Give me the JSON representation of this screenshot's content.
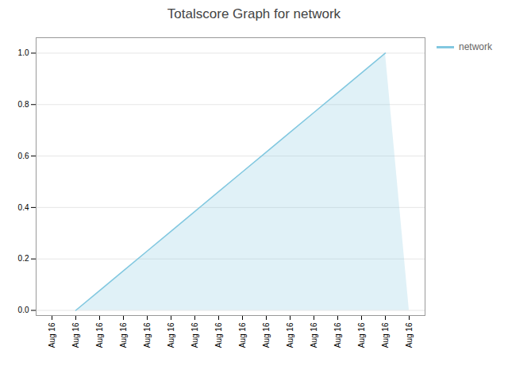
{
  "chart_data": {
    "type": "area",
    "title": "Totalscore Graph for network",
    "categories": [
      "Aug 16",
      "Aug 16",
      "Aug 16",
      "Aug 16",
      "Aug 16",
      "Aug 16",
      "Aug 16",
      "Aug 16",
      "Aug 16",
      "Aug 16",
      "Aug 16",
      "Aug 16",
      "Aug 16",
      "Aug 16",
      "Aug 16",
      "Aug 16"
    ],
    "series": [
      {
        "name": "network",
        "color": "#82C8E0",
        "values": [
          null,
          0,
          0.07692307692307693,
          0.15384615384615385,
          0.23076923076923078,
          0.3076923076923077,
          0.38461538461538464,
          0.46153846153846156,
          0.5384615384615384,
          0.6153846153846154,
          0.6923076923076923,
          0.7692307692307693,
          0.8461538461538461,
          0.9230769230769231,
          1,
          null
        ]
      }
    ],
    "ylim": [
      -0.02,
      1.06
    ],
    "yticks": [
      {
        "value": 0,
        "label": "0.0"
      },
      0.2,
      0.4,
      0.6,
      0.8,
      {
        "value": 1,
        "label": "1.0"
      }
    ],
    "grid": true,
    "legend": "right"
  }
}
